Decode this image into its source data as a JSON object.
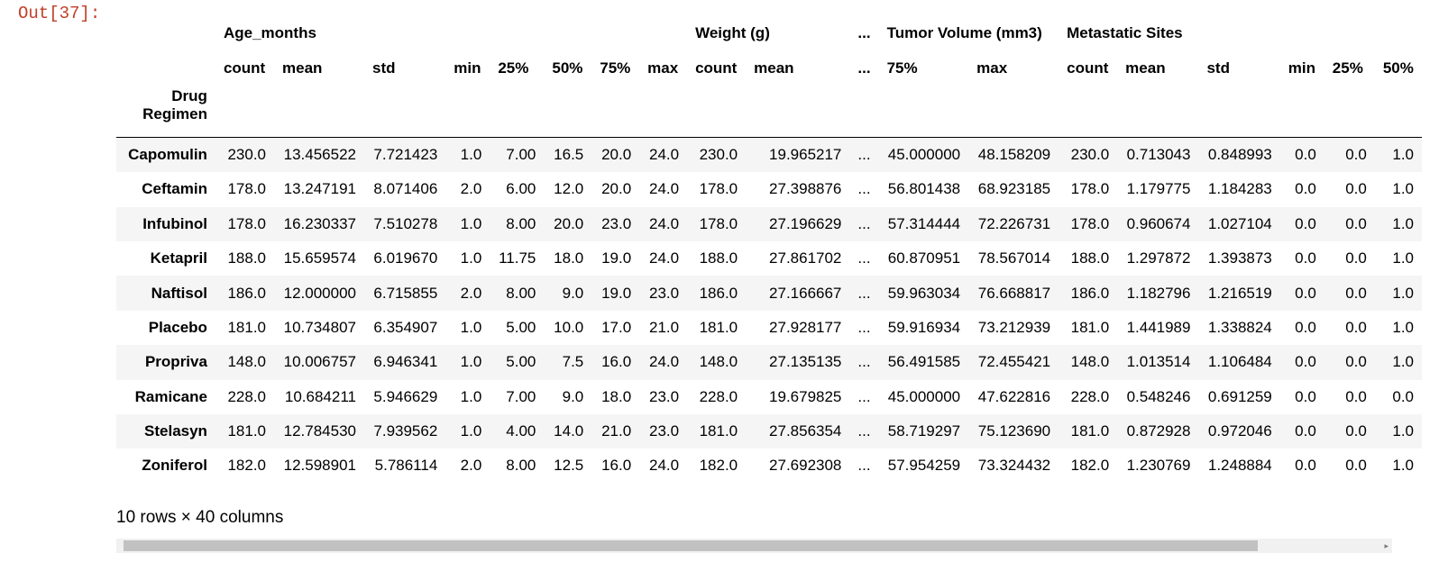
{
  "cell": {
    "prompt": "Out[37]:"
  },
  "groups": [
    "Age_months",
    "Weight (g)",
    "...",
    "Tumor Volume (mm3)",
    "Metastatic Sites"
  ],
  "stat_columns": [
    "count",
    "mean",
    "std",
    "min",
    "25%",
    "50%",
    "75%",
    "max",
    "count",
    "mean",
    "...",
    "75%",
    "max",
    "count",
    "mean",
    "std",
    "min",
    "25%",
    "50%"
  ],
  "index_name": "Drug\nRegimen",
  "rows": [
    {
      "label": "Capomulin",
      "values": [
        "230.0",
        "13.456522",
        "7.721423",
        "1.0",
        "7.00",
        "16.5",
        "20.0",
        "24.0",
        "230.0",
        "19.965217",
        "...",
        "45.000000",
        "48.158209",
        "230.0",
        "0.713043",
        "0.848993",
        "0.0",
        "0.0",
        "1.0"
      ]
    },
    {
      "label": "Ceftamin",
      "values": [
        "178.0",
        "13.247191",
        "8.071406",
        "2.0",
        "6.00",
        "12.0",
        "20.0",
        "24.0",
        "178.0",
        "27.398876",
        "...",
        "56.801438",
        "68.923185",
        "178.0",
        "1.179775",
        "1.184283",
        "0.0",
        "0.0",
        "1.0"
      ]
    },
    {
      "label": "Infubinol",
      "values": [
        "178.0",
        "16.230337",
        "7.510278",
        "1.0",
        "8.00",
        "20.0",
        "23.0",
        "24.0",
        "178.0",
        "27.196629",
        "...",
        "57.314444",
        "72.226731",
        "178.0",
        "0.960674",
        "1.027104",
        "0.0",
        "0.0",
        "1.0"
      ]
    },
    {
      "label": "Ketapril",
      "values": [
        "188.0",
        "15.659574",
        "6.019670",
        "1.0",
        "11.75",
        "18.0",
        "19.0",
        "24.0",
        "188.0",
        "27.861702",
        "...",
        "60.870951",
        "78.567014",
        "188.0",
        "1.297872",
        "1.393873",
        "0.0",
        "0.0",
        "1.0"
      ]
    },
    {
      "label": "Naftisol",
      "values": [
        "186.0",
        "12.000000",
        "6.715855",
        "2.0",
        "8.00",
        "9.0",
        "19.0",
        "23.0",
        "186.0",
        "27.166667",
        "...",
        "59.963034",
        "76.668817",
        "186.0",
        "1.182796",
        "1.216519",
        "0.0",
        "0.0",
        "1.0"
      ]
    },
    {
      "label": "Placebo",
      "values": [
        "181.0",
        "10.734807",
        "6.354907",
        "1.0",
        "5.00",
        "10.0",
        "17.0",
        "21.0",
        "181.0",
        "27.928177",
        "...",
        "59.916934",
        "73.212939",
        "181.0",
        "1.441989",
        "1.338824",
        "0.0",
        "0.0",
        "1.0"
      ]
    },
    {
      "label": "Propriva",
      "values": [
        "148.0",
        "10.006757",
        "6.946341",
        "1.0",
        "5.00",
        "7.5",
        "16.0",
        "24.0",
        "148.0",
        "27.135135",
        "...",
        "56.491585",
        "72.455421",
        "148.0",
        "1.013514",
        "1.106484",
        "0.0",
        "0.0",
        "1.0"
      ]
    },
    {
      "label": "Ramicane",
      "values": [
        "228.0",
        "10.684211",
        "5.946629",
        "1.0",
        "7.00",
        "9.0",
        "18.0",
        "23.0",
        "228.0",
        "19.679825",
        "...",
        "45.000000",
        "47.622816",
        "228.0",
        "0.548246",
        "0.691259",
        "0.0",
        "0.0",
        "0.0"
      ]
    },
    {
      "label": "Stelasyn",
      "values": [
        "181.0",
        "12.784530",
        "7.939562",
        "1.0",
        "4.00",
        "14.0",
        "21.0",
        "23.0",
        "181.0",
        "27.856354",
        "...",
        "58.719297",
        "75.123690",
        "181.0",
        "0.872928",
        "0.972046",
        "0.0",
        "0.0",
        "1.0"
      ]
    },
    {
      "label": "Zoniferol",
      "values": [
        "182.0",
        "12.598901",
        "5.786114",
        "2.0",
        "8.00",
        "12.5",
        "16.0",
        "24.0",
        "182.0",
        "27.692308",
        "...",
        "57.954259",
        "73.324432",
        "182.0",
        "1.230769",
        "1.248884",
        "0.0",
        "0.0",
        "1.0"
      ]
    }
  ],
  "summary": "10 rows × 40 columns",
  "scrollbar": {
    "left_arrow": "◂",
    "right_arrow": "▸"
  }
}
